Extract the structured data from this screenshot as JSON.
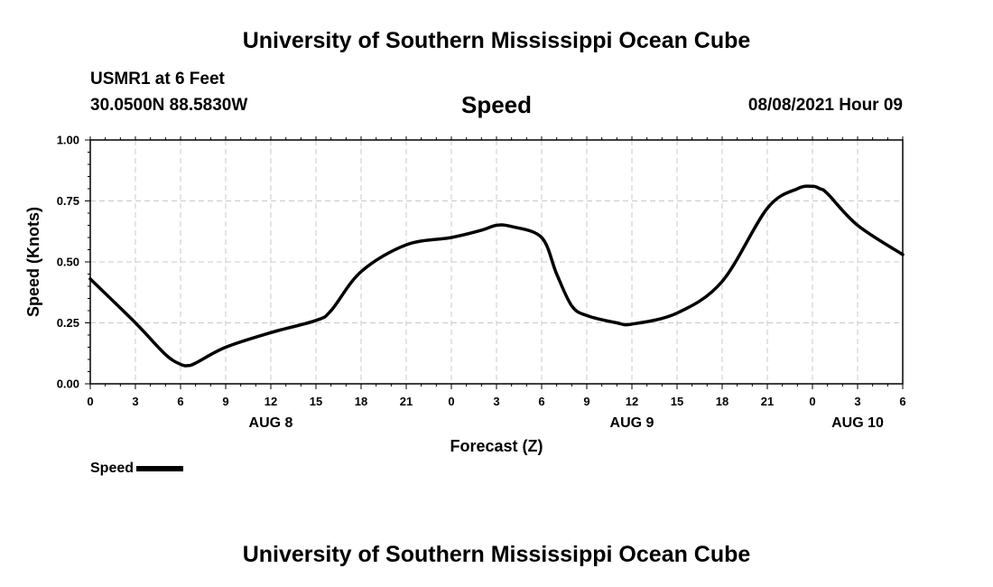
{
  "header": {
    "title_top": "University of Southern Mississippi Ocean Cube",
    "station": "USMR1 at 6 Feet",
    "coords": "30.0500N  88.5830W",
    "chart_title": "Speed",
    "datetime": "08/08/2021 Hour 09",
    "title_bottom": "University of Southern Mississippi Ocean Cube"
  },
  "legend": {
    "label": "Speed"
  },
  "chart_data": {
    "type": "line",
    "title": "Speed",
    "xlabel": "Forecast (Z)",
    "ylabel": "Speed (Knots)",
    "xlim": [
      0,
      54
    ],
    "ylim": [
      0,
      1
    ],
    "x_tick_values": [
      0,
      3,
      6,
      9,
      12,
      15,
      18,
      21,
      24,
      27,
      30,
      33,
      36,
      39,
      42,
      45,
      48,
      51,
      54
    ],
    "x_tick_labels": [
      "0",
      "3",
      "6",
      "9",
      "12",
      "15",
      "18",
      "21",
      "0",
      "3",
      "6",
      "9",
      "12",
      "15",
      "18",
      "21",
      "0",
      "3",
      "6"
    ],
    "y_tick_values": [
      0,
      0.25,
      0.5,
      0.75,
      1.0
    ],
    "y_tick_labels": [
      "0.00",
      "0.25",
      "0.50",
      "0.75",
      "1.00"
    ],
    "date_labels": [
      {
        "x": 12,
        "label": "AUG 8"
      },
      {
        "x": 36,
        "label": "AUG 9"
      },
      {
        "x": 51,
        "label": "AUG 10"
      }
    ],
    "grid": true,
    "series": [
      {
        "name": "Speed",
        "color": "#000000",
        "x": [
          0,
          3,
          5,
          6,
          6.5,
          7,
          9,
          12,
          15,
          16,
          18,
          21,
          24,
          26,
          27,
          28,
          30,
          31,
          32,
          33,
          35,
          36,
          39,
          42,
          45,
          47,
          48,
          48.5,
          49,
          51,
          54
        ],
        "y": [
          0.43,
          0.25,
          0.12,
          0.08,
          0.075,
          0.085,
          0.15,
          0.21,
          0.26,
          0.3,
          0.46,
          0.57,
          0.6,
          0.63,
          0.65,
          0.645,
          0.6,
          0.45,
          0.32,
          0.28,
          0.25,
          0.245,
          0.29,
          0.42,
          0.72,
          0.8,
          0.81,
          0.8,
          0.78,
          0.65,
          0.53
        ]
      }
    ]
  }
}
